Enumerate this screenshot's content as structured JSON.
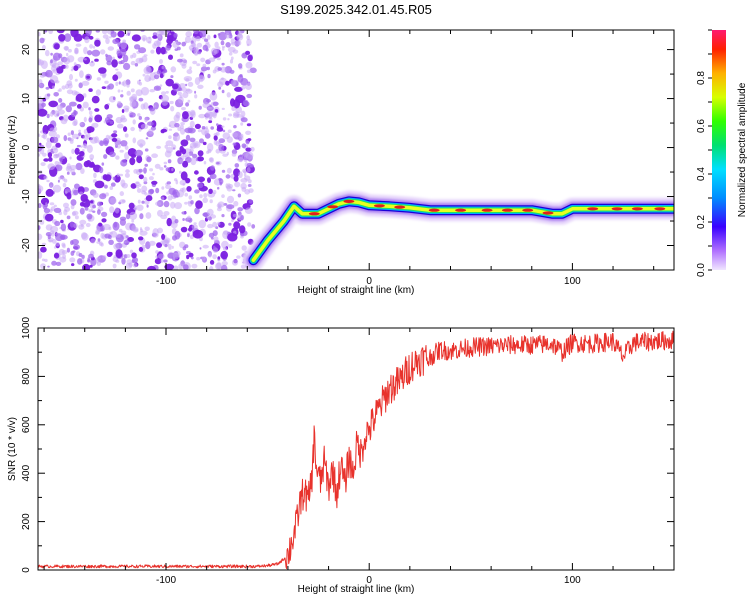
{
  "title": "S199.2025.342.01.45.R05",
  "colors": {
    "snr_line": "#e8322c",
    "spectrogram_noise": "#8a2be2",
    "axis": "#000000"
  },
  "chart_data": [
    {
      "type": "heatmap",
      "xlabel": "Height of straight line (km)",
      "ylabel": "Frequency (Hz)",
      "xlim": [
        -163,
        150
      ],
      "ylim": [
        -25,
        24
      ],
      "xticks": [
        -100,
        0,
        100
      ],
      "yticks": [
        -20,
        -10,
        0,
        10,
        20
      ],
      "colorbar": {
        "label": "Normalized spectral amplitude",
        "range": [
          0,
          1
        ],
        "ticks": [
          "0.0",
          "0.2",
          "0.4",
          "0.6",
          "0.8"
        ],
        "colormap": "rainbow (violet to red)"
      },
      "noise_region": {
        "x_range": [
          -163,
          -57
        ],
        "y_range": [
          -25,
          24
        ],
        "amplitude": "low (0.0-0.3)"
      },
      "ridge": {
        "description": "dominant frequency track, normalized amplitude near 1.0",
        "x": [
          -57,
          -50,
          -42,
          -37,
          -33,
          -30,
          -25,
          -20,
          -15,
          -10,
          -5,
          0,
          10,
          20,
          30,
          40,
          50,
          60,
          70,
          80,
          90,
          95,
          100,
          110,
          120,
          130,
          140,
          150
        ],
        "y": [
          -23,
          -19,
          -15,
          -12,
          -13.5,
          -13.5,
          -13.5,
          -12.5,
          -11.5,
          -11,
          -11.2,
          -11.8,
          -12,
          -12.3,
          -12.8,
          -12.8,
          -12.8,
          -12.8,
          -12.8,
          -12.8,
          -13.5,
          -13.5,
          -12.5,
          -12.5,
          -12.5,
          -12.5,
          -12.5,
          -12.5
        ]
      }
    },
    {
      "type": "line",
      "xlabel": "Height of straight line (km)",
      "ylabel": "SNR (10 * v/v)",
      "xlim": [
        -163,
        150
      ],
      "ylim": [
        0,
        1000
      ],
      "xticks": [
        -100,
        0,
        100
      ],
      "yticks": [
        0,
        200,
        400,
        600,
        800,
        1000
      ],
      "series": [
        {
          "x": [
            -163,
            -150,
            -130,
            -110,
            -90,
            -70,
            -55,
            -50,
            -45,
            -40,
            -38,
            -36,
            -34,
            -32,
            -30,
            -28,
            -27,
            -26,
            -24,
            -22,
            -20,
            -18,
            -16,
            -14,
            -12,
            -10,
            -8,
            -6,
            -4,
            -2,
            0,
            5,
            10,
            15,
            20,
            25,
            30,
            35,
            40,
            50,
            60,
            70,
            80,
            90,
            95,
            100,
            110,
            120,
            125,
            130,
            140,
            150
          ],
          "y": [
            15,
            15,
            15,
            15,
            15,
            15,
            15,
            18,
            25,
            60,
            120,
            180,
            280,
            330,
            280,
            400,
            560,
            420,
            360,
            450,
            340,
            420,
            310,
            440,
            350,
            470,
            400,
            520,
            480,
            560,
            580,
            670,
            750,
            780,
            840,
            870,
            880,
            910,
            905,
            920,
            925,
            930,
            930,
            935,
            900,
            940,
            935,
            945,
            880,
            940,
            945,
            950
          ]
        }
      ]
    }
  ]
}
